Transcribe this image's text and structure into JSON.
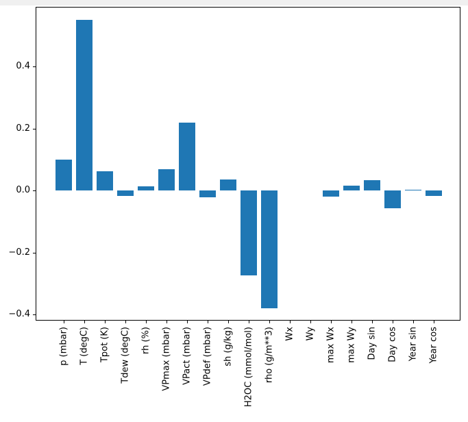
{
  "figure": {
    "background_color": "#ffffff",
    "top_strip_color": "#f0f0f0",
    "spine_color": "#000000"
  },
  "chart_data": {
    "type": "bar",
    "title": "",
    "xlabel": "",
    "ylabel": "",
    "grid": false,
    "legend": null,
    "bar_color": "#1f77b4",
    "ylim": [
      -0.42,
      0.593
    ],
    "ytick_values": [
      0.4,
      0.2,
      0.0,
      -0.2,
      -0.4
    ],
    "ytick_labels": [
      "0.4",
      "0.2",
      "0.0",
      "−0.2",
      "−0.4"
    ],
    "categories": [
      "p (mbar)",
      "T (degC)",
      "Tpot (K)",
      "Tdew (degC)",
      "rh (%)",
      "VPmax (mbar)",
      "VPact (mbar)",
      "VPdef (mbar)",
      "sh (g/kg)",
      "H2OC (mmol/mol)",
      "rho (g/m**3)",
      "Wx",
      "Wy",
      "max Wx",
      "max Wy",
      "Day sin",
      "Day cos",
      "Year sin",
      "Year cos"
    ],
    "values": [
      0.1,
      0.55,
      0.063,
      -0.017,
      0.013,
      0.068,
      0.219,
      -0.022,
      0.036,
      -0.274,
      -0.38,
      0.0,
      0.0,
      -0.02,
      0.016,
      0.034,
      -0.058,
      0.003,
      -0.018
    ]
  }
}
